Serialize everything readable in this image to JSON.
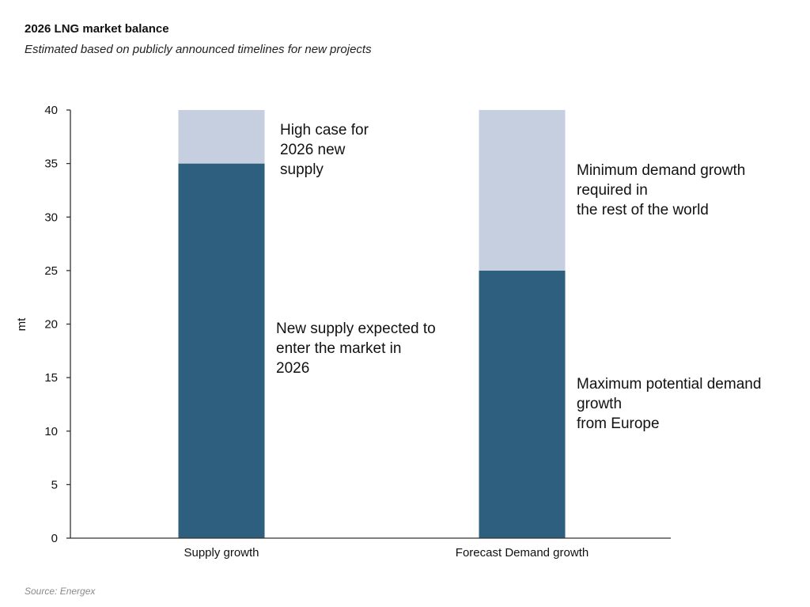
{
  "chart_data": {
    "type": "bar",
    "stacked": true,
    "title": "2026 LNG market balance",
    "subtitle": "Estimated based on publicly announced timelines for new projects",
    "ylabel": "mt",
    "xlabel": "",
    "ylim": [
      0,
      40
    ],
    "yticks": [
      0,
      5,
      10,
      15,
      20,
      25,
      30,
      35,
      40
    ],
    "categories": [
      "Supply growth",
      "Forecast Demand growth"
    ],
    "series": [
      {
        "values": [
          35,
          25
        ],
        "color": "#2e5f7e"
      },
      {
        "values": [
          5,
          15
        ],
        "color": "#c6cfdf"
      }
    ],
    "annotations": [
      "High case for\n2026 new\nsupply",
      "New supply expected to\nenter the market in\n2026",
      "Minimum demand growth\nrequired in\nthe rest of the world",
      "Maximum potential demand\ngrowth\nfrom Europe"
    ],
    "grid": false,
    "legend": "none",
    "source": "Source: Energex"
  }
}
